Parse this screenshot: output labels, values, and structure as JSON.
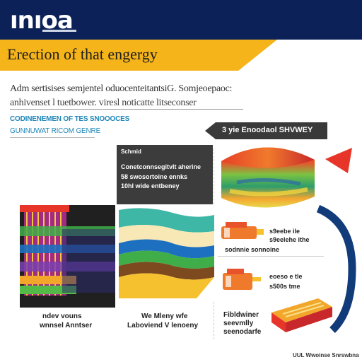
{
  "header": {
    "logo": "ınıoa",
    "title": "Erection of that engergy"
  },
  "body": {
    "paragraph_1": "Adm sertisises semjentel oduocenteitantsiG. Somjeoepaoc:",
    "paragraph_2": "anhivenset l tuetbower. viresl noticatte litseconser",
    "subheading_1": "CODINENEMEN OF TES SNOOOCES",
    "subheading_2": "GUNNUWAT RICOM GENRE"
  },
  "banner": {
    "text": "3 yie Enoodaol SHVWEY"
  },
  "callout": {
    "lines": [
      "Schmid",
      "Conetconnsegitvlt aherine",
      "58 swosortoine ennks",
      "10hl wide entbeney"
    ]
  },
  "captions": {
    "left": [
      "ndev vouns",
      "wnnsel Anntser"
    ],
    "middle": [
      "We Mleny wfe",
      "Laboviend V lenoeny"
    ],
    "right": [
      "Fibldwiner",
      "seevmlly",
      "seenodarfe"
    ]
  },
  "items": [
    {
      "line1": "s9eebe ile",
      "line2": "s9eelehe ithe",
      "line3": "sodnnie sonnoine"
    },
    {
      "line1": "eoeso e tle",
      "line2": "s500s tme"
    }
  ],
  "footer": {
    "text": "UUL  Wwoinse Snrswbna"
  },
  "colors": {
    "navy": "#0c2157",
    "yellow": "#f5b41a",
    "dark_grey": "#3a3a3a",
    "accent_blue": "#1f86b8",
    "accent_red": "#e8352a"
  }
}
